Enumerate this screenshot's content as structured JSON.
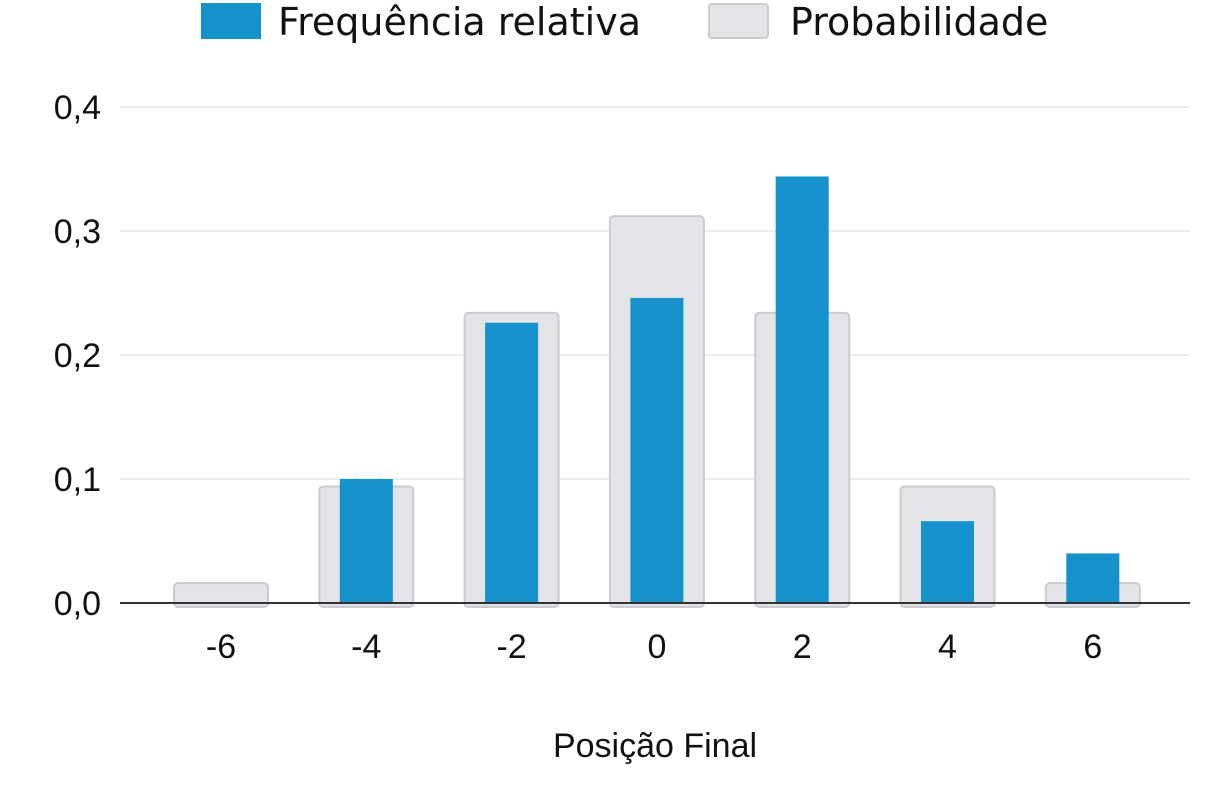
{
  "chart_data": {
    "type": "bar",
    "categories": [
      "-6",
      "-4",
      "-2",
      "0",
      "2",
      "4",
      "6"
    ],
    "series": [
      {
        "name": "Frequência relativa",
        "values": [
          0.0,
          0.1,
          0.226,
          0.246,
          0.344,
          0.066,
          0.04
        ],
        "color": "#1591cb"
      },
      {
        "name": "Probabilidade",
        "values": [
          0.016,
          0.094,
          0.234,
          0.312,
          0.234,
          0.094,
          0.016
        ],
        "color": "#e3e4e8"
      }
    ],
    "title": "",
    "xlabel": "Posição Final",
    "ylabel": "",
    "ylim": [
      0,
      0.4
    ],
    "yticks": [
      "0,0",
      "0,1",
      "0,2",
      "0,3",
      "0,4"
    ],
    "grid": true,
    "legend_position": "top"
  }
}
